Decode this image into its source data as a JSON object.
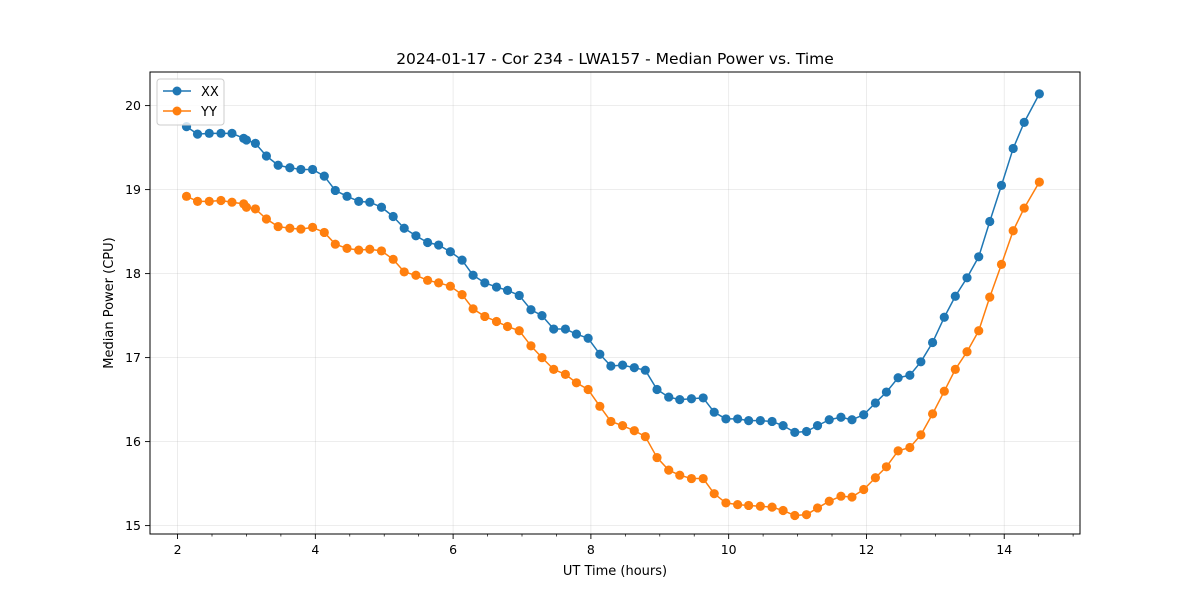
{
  "chart_data": {
    "type": "line",
    "title": "2024-01-17 - Cor 234 - LWA157 - Median Power vs. Time",
    "xlabel": "UT Time (hours)",
    "ylabel": "Median Power (CPU)",
    "xlim": [
      1.6,
      15.1
    ],
    "ylim": [
      14.9,
      20.4
    ],
    "xticks": [
      2,
      4,
      6,
      8,
      10,
      12,
      14
    ],
    "xtick_labels": [
      "2",
      "4",
      "6",
      "8",
      "10",
      "12",
      "14"
    ],
    "yticks": [
      15,
      16,
      17,
      18,
      19,
      20
    ],
    "ytick_labels": [
      "15",
      "16",
      "17",
      "18",
      "19",
      "20"
    ],
    "x_minor_step": 0.5,
    "grid": true,
    "legend_position": "top-left",
    "series": [
      {
        "name": "XX",
        "color": "#1f77b4",
        "x": [
          2.13,
          2.29,
          2.46,
          2.63,
          2.79,
          2.96,
          3.0,
          3.13,
          3.29,
          3.46,
          3.63,
          3.79,
          3.96,
          4.13,
          4.29,
          4.46,
          4.63,
          4.79,
          4.96,
          5.13,
          5.29,
          5.46,
          5.63,
          5.79,
          5.96,
          6.13,
          6.29,
          6.46,
          6.63,
          6.79,
          6.96,
          7.13,
          7.29,
          7.46,
          7.63,
          7.79,
          7.96,
          8.13,
          8.29,
          8.46,
          8.63,
          8.79,
          8.96,
          9.13,
          9.29,
          9.46,
          9.63,
          9.79,
          9.96,
          10.13,
          10.29,
          10.46,
          10.63,
          10.79,
          10.96,
          11.13,
          11.29,
          11.46,
          11.63,
          11.79,
          11.96,
          12.13,
          12.29,
          12.46,
          12.63,
          12.79,
          12.96,
          13.13,
          13.29,
          13.46,
          13.63,
          13.79,
          13.96,
          14.13,
          14.29,
          14.51
        ],
        "values": [
          19.75,
          19.66,
          19.67,
          19.67,
          19.67,
          19.61,
          19.59,
          19.55,
          19.4,
          19.29,
          19.26,
          19.24,
          19.24,
          19.16,
          18.99,
          18.92,
          18.86,
          18.85,
          18.79,
          18.68,
          18.54,
          18.45,
          18.37,
          18.34,
          18.26,
          18.16,
          17.98,
          17.89,
          17.84,
          17.8,
          17.74,
          17.57,
          17.5,
          17.34,
          17.34,
          17.28,
          17.23,
          17.04,
          16.9,
          16.91,
          16.88,
          16.85,
          16.62,
          16.53,
          16.5,
          16.51,
          16.52,
          16.35,
          16.27,
          16.27,
          16.25,
          16.25,
          16.24,
          16.19,
          16.11,
          16.12,
          16.19,
          16.26,
          16.29,
          16.26,
          16.32,
          16.46,
          16.59,
          16.76,
          16.79,
          16.95,
          17.18,
          17.48,
          17.73,
          17.95,
          18.2,
          18.62,
          19.05,
          19.49,
          19.8,
          20.14
        ]
      },
      {
        "name": "YY",
        "color": "#ff7f0e",
        "x": [
          2.13,
          2.29,
          2.46,
          2.63,
          2.79,
          2.96,
          3.0,
          3.13,
          3.29,
          3.46,
          3.63,
          3.79,
          3.96,
          4.13,
          4.29,
          4.46,
          4.63,
          4.79,
          4.96,
          5.13,
          5.29,
          5.46,
          5.63,
          5.79,
          5.96,
          6.13,
          6.29,
          6.46,
          6.63,
          6.79,
          6.96,
          7.13,
          7.29,
          7.46,
          7.63,
          7.79,
          7.96,
          8.13,
          8.29,
          8.46,
          8.63,
          8.79,
          8.96,
          9.13,
          9.29,
          9.46,
          9.63,
          9.79,
          9.96,
          10.13,
          10.29,
          10.46,
          10.63,
          10.79,
          10.96,
          11.13,
          11.29,
          11.46,
          11.63,
          11.79,
          11.96,
          12.13,
          12.29,
          12.46,
          12.63,
          12.79,
          12.96,
          13.13,
          13.29,
          13.46,
          13.63,
          13.79,
          13.96,
          14.13,
          14.29,
          14.51
        ],
        "values": [
          18.92,
          18.86,
          18.86,
          18.87,
          18.85,
          18.83,
          18.79,
          18.77,
          18.65,
          18.56,
          18.54,
          18.53,
          18.55,
          18.49,
          18.35,
          18.3,
          18.28,
          18.29,
          18.27,
          18.17,
          18.02,
          17.98,
          17.92,
          17.89,
          17.85,
          17.75,
          17.58,
          17.49,
          17.43,
          17.37,
          17.32,
          17.14,
          17.0,
          16.86,
          16.8,
          16.7,
          16.62,
          16.42,
          16.24,
          16.19,
          16.13,
          16.06,
          15.81,
          15.66,
          15.6,
          15.56,
          15.56,
          15.38,
          15.27,
          15.25,
          15.24,
          15.23,
          15.22,
          15.18,
          15.12,
          15.13,
          15.21,
          15.29,
          15.35,
          15.34,
          15.43,
          15.57,
          15.7,
          15.89,
          15.93,
          16.08,
          16.33,
          16.6,
          16.86,
          17.07,
          17.32,
          17.72,
          18.11,
          18.51,
          18.78,
          19.09
        ]
      }
    ]
  }
}
